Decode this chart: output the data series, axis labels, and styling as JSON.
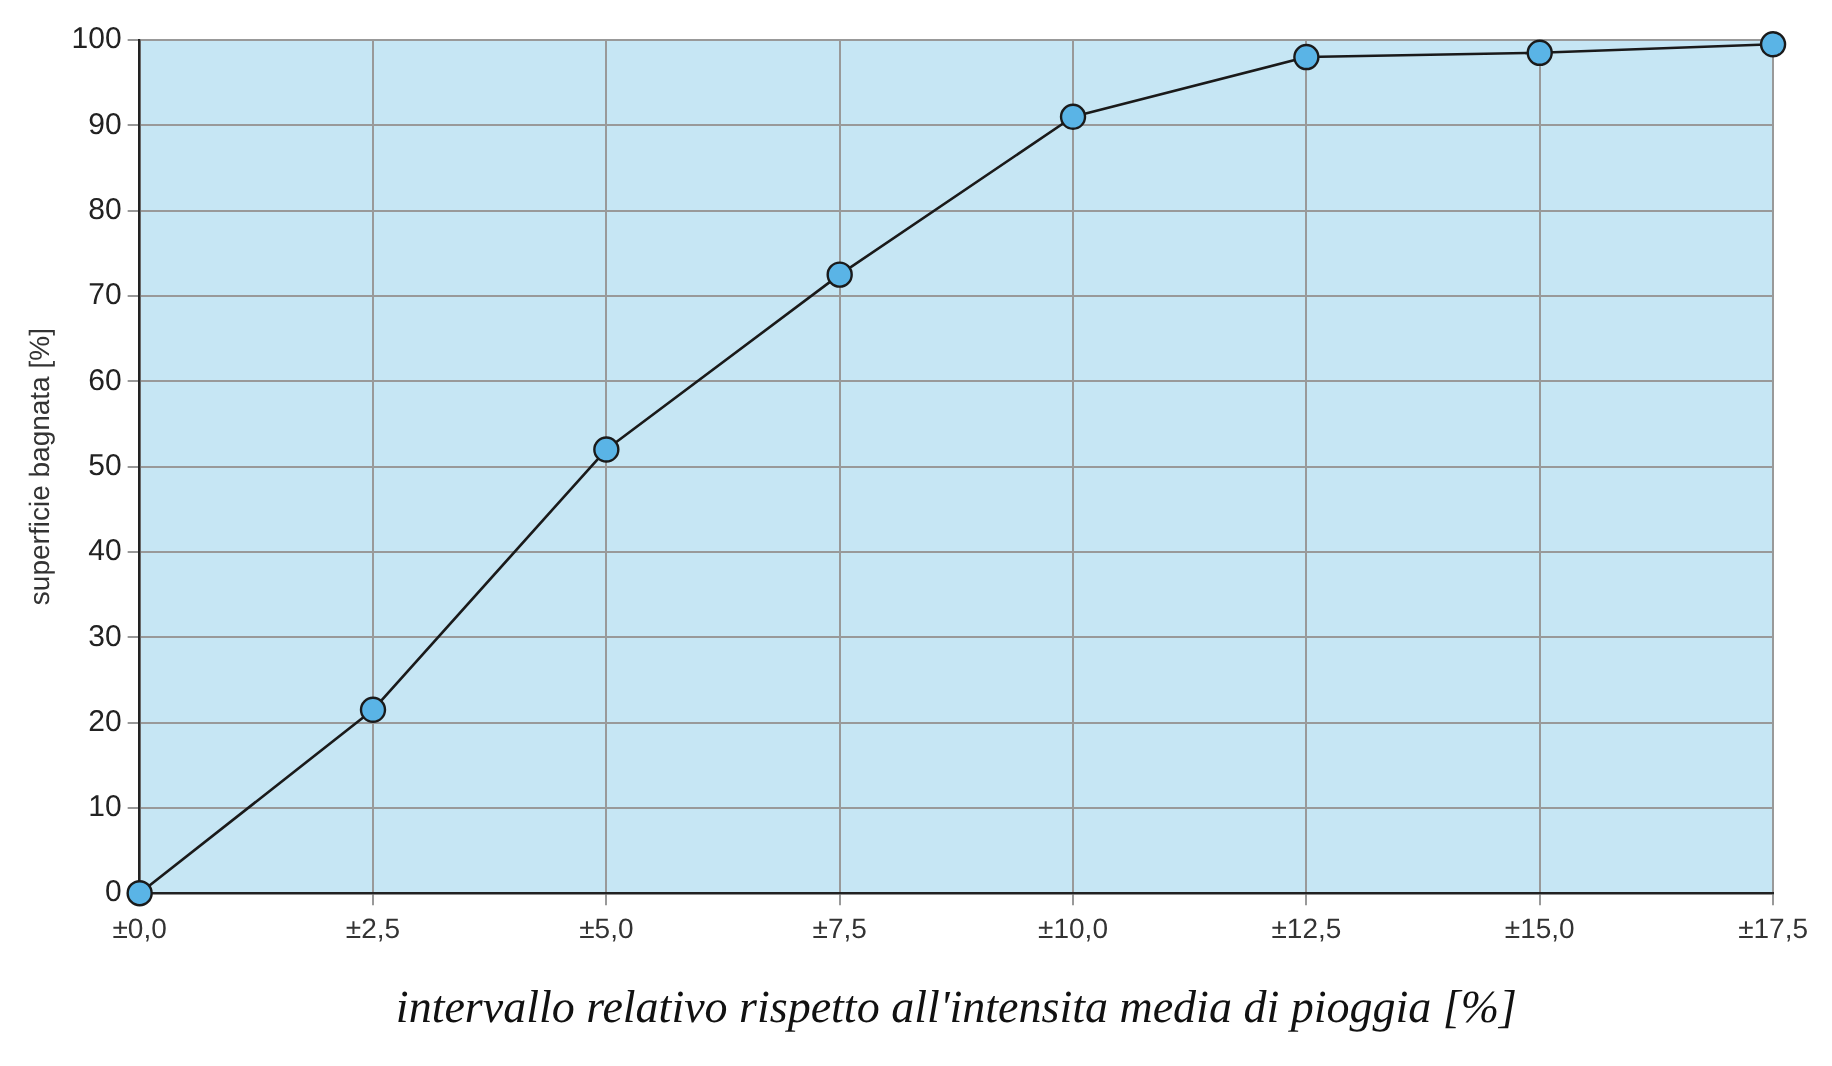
{
  "chart_data": {
    "type": "line",
    "xlabel": "intervallo relativo rispetto all'intensita media di pioggia [%]",
    "ylabel": "superficie bagnata [%]",
    "categories": [
      "±0,0",
      "±2,5",
      "±5,0",
      "±7,5",
      "±10,0",
      "±12,5",
      "±15,0",
      "±17,5"
    ],
    "series": [
      {
        "color": "#1a1a1a",
        "values": [
          0,
          21.5,
          52,
          72.5,
          91,
          98,
          98.5,
          99.5
        ]
      }
    ],
    "ylim": [
      0,
      100
    ],
    "yticks": [
      0,
      10,
      20,
      30,
      40,
      50,
      60,
      70,
      80,
      90,
      100
    ],
    "grid": true,
    "legend": false,
    "marker": "circle",
    "line_style": "solid"
  }
}
